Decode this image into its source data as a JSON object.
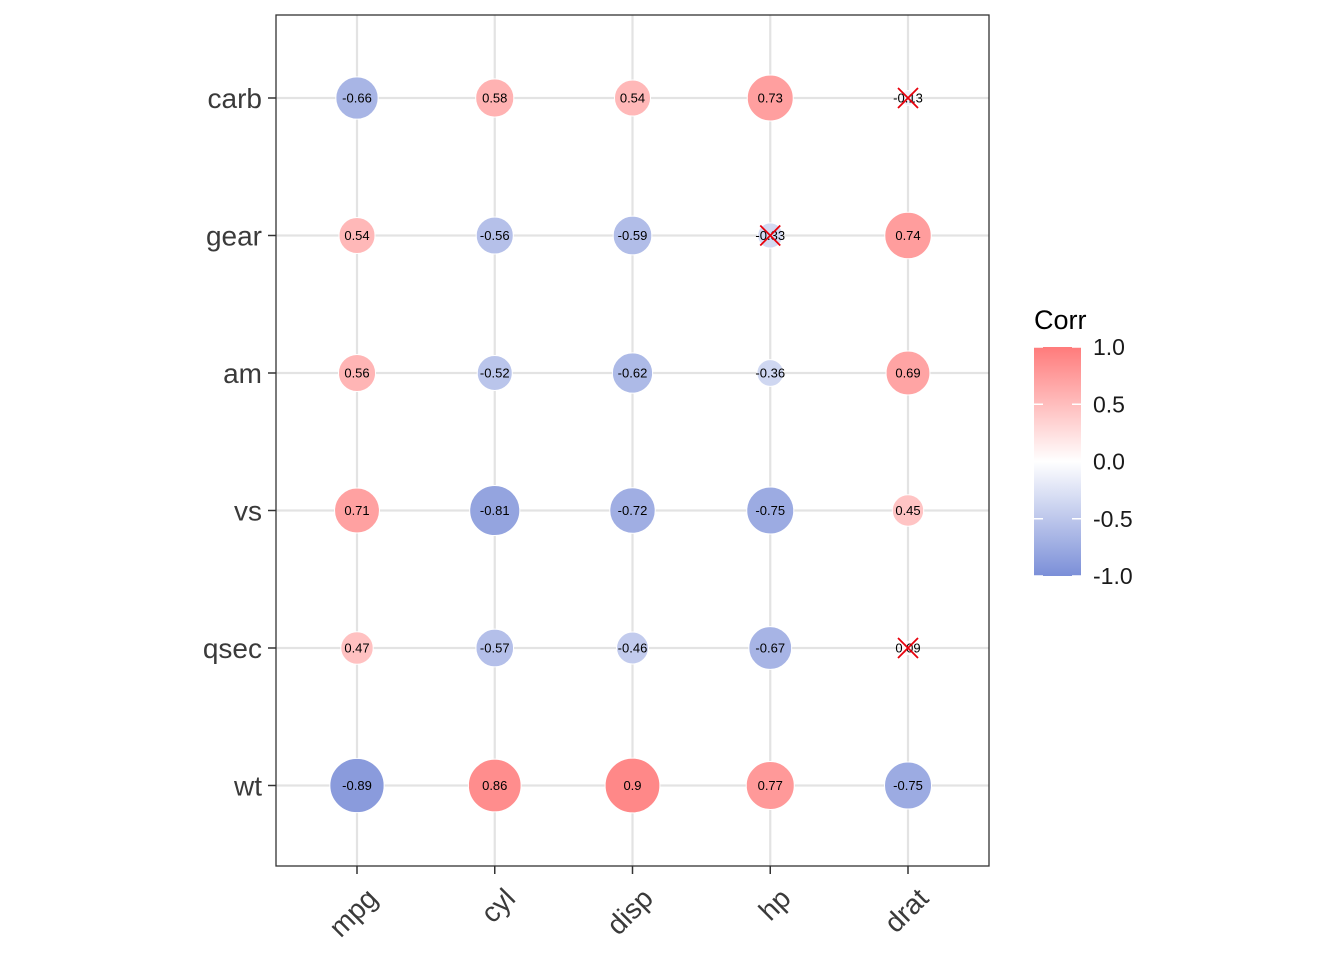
{
  "chart_data": {
    "type": "heatmap",
    "x_categories": [
      "mpg",
      "cyl",
      "disp",
      "hp",
      "drat"
    ],
    "y_categories": [
      "carb",
      "gear",
      "am",
      "vs",
      "qsec",
      "wt"
    ],
    "rows": [
      {
        "y": "carb",
        "values": [
          -0.66,
          0.58,
          0.54,
          0.73,
          -0.13
        ],
        "labels": [
          "-0.66",
          "0.58",
          "0.54",
          "0.73",
          "-0.13"
        ],
        "insignificant": [
          false,
          false,
          false,
          false,
          true
        ]
      },
      {
        "y": "gear",
        "values": [
          0.54,
          -0.56,
          -0.59,
          -0.33,
          0.74
        ],
        "labels": [
          "0.54",
          "-0.56",
          "-0.59",
          "-0.33",
          "0.74"
        ],
        "insignificant": [
          false,
          false,
          false,
          true,
          false
        ]
      },
      {
        "y": "am",
        "values": [
          0.56,
          -0.52,
          -0.62,
          -0.36,
          0.69
        ],
        "labels": [
          "0.56",
          "-0.52",
          "-0.62",
          "-0.36",
          "0.69"
        ],
        "insignificant": [
          false,
          false,
          false,
          false,
          false
        ]
      },
      {
        "y": "vs",
        "values": [
          0.71,
          -0.81,
          -0.72,
          -0.75,
          0.45
        ],
        "labels": [
          "0.71",
          "-0.81",
          "-0.72",
          "-0.75",
          "0.45"
        ],
        "insignificant": [
          false,
          false,
          false,
          false,
          false
        ]
      },
      {
        "y": "qsec",
        "values": [
          0.47,
          -0.57,
          -0.46,
          -0.67,
          0.09
        ],
        "labels": [
          "0.47",
          "-0.57",
          "-0.46",
          "-0.67",
          "0.09"
        ],
        "insignificant": [
          false,
          false,
          false,
          false,
          true
        ]
      },
      {
        "y": "wt",
        "values": [
          -0.89,
          0.86,
          0.9,
          0.77,
          -0.75
        ],
        "labels": [
          "-0.89",
          "0.86",
          "0.9",
          "0.77",
          "-0.75"
        ],
        "insignificant": [
          false,
          false,
          false,
          false,
          false
        ]
      }
    ],
    "legend": {
      "title": "Corr",
      "ticks": [
        "1.0",
        "0.5",
        "0.0",
        "-0.5",
        "-1.0"
      ],
      "range": [
        -1,
        1
      ],
      "placement": "right"
    },
    "colors": {
      "low": "#7b8fd8",
      "mid": "#ffffff",
      "high": "#ff7b7b",
      "insignificant_mark": "#e8000b"
    },
    "grid": true
  }
}
